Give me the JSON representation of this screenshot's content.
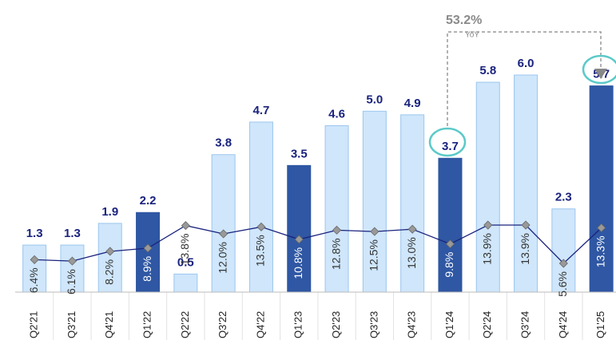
{
  "chart_data": {
    "type": "bar",
    "categories": [
      "Q2'21",
      "Q3'21",
      "Q4'21",
      "Q1'22",
      "Q2'22",
      "Q3'22",
      "Q4'22",
      "Q1'23",
      "Q2'23",
      "Q3'23",
      "Q4'23",
      "Q1'24",
      "Q2'24",
      "Q3'24",
      "Q4'24",
      "Q1'25"
    ],
    "series": [
      {
        "type": "bar",
        "values": [
          1.3,
          1.3,
          1.9,
          2.2,
          0.5,
          3.8,
          4.7,
          3.5,
          4.6,
          5.0,
          4.9,
          3.7,
          5.8,
          6.0,
          2.3,
          5.7
        ],
        "value_labels": [
          "1.3",
          "1.3",
          "1.9",
          "2.2",
          "0.5",
          "3.8",
          "4.7",
          "3.5",
          "4.6",
          "5.0",
          "4.9",
          "3.7",
          "5.8",
          "6.0",
          "2.3",
          "5.7"
        ],
        "colors": [
          "#cfe6fb",
          "#cfe6fb",
          "#cfe6fb",
          "#2f57a3",
          "#cfe6fb",
          "#cfe6fb",
          "#cfe6fb",
          "#2f57a3",
          "#cfe6fb",
          "#cfe6fb",
          "#cfe6fb",
          "#2f57a3",
          "#cfe6fb",
          "#cfe6fb",
          "#cfe6fb",
          "#2f57a3"
        ]
      },
      {
        "type": "line",
        "color": "#1a237e",
        "values": [
          6.4,
          6.1,
          8.2,
          8.9,
          13.8,
          12.0,
          13.5,
          10.8,
          12.8,
          12.5,
          13.0,
          9.8,
          13.9,
          13.9,
          5.6,
          13.3
        ],
        "value_labels": [
          "6.4%",
          "6.1%",
          "8.2%",
          "8.9%",
          "13.8%",
          "12.0%",
          "13.5%",
          "10.8%",
          "12.8%",
          "12.5%",
          "13.0%",
          "9.8%",
          "13.9%",
          "13.9%",
          "5.6%",
          "13.3%"
        ]
      }
    ],
    "annotation": {
      "text": "53.2%",
      "subtext": "YoY"
    }
  }
}
